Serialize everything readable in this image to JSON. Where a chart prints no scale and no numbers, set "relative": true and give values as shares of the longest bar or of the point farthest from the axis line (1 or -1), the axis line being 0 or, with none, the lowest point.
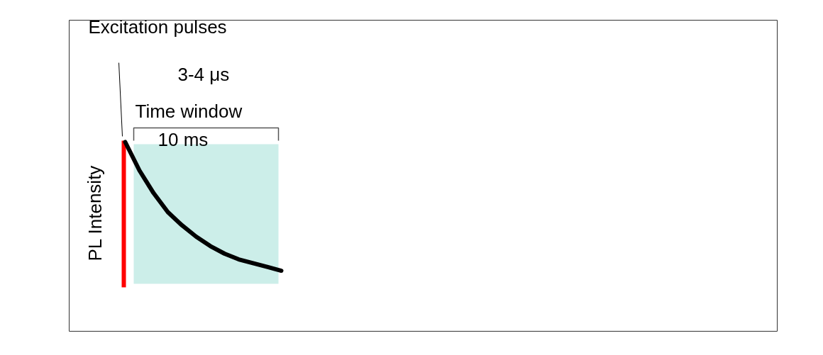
{
  "chart_data": {
    "type": "line",
    "relative": true,
    "ylabel": "PL Intensity",
    "categories": [
      null,
      null,
      null,
      null,
      null,
      null,
      null,
      null,
      null,
      null,
      null,
      null
    ],
    "series": [
      {
        "color": "#000000",
        "values": [
          1.0,
          0.85,
          0.73,
          0.63,
          0.56,
          0.5,
          0.45,
          0.41,
          0.38,
          0.36,
          0.34,
          0.32
        ]
      }
    ],
    "annotations": [
      "Excitation pulses",
      "3-4 μs",
      "Time window",
      "10 ms"
    ]
  }
}
